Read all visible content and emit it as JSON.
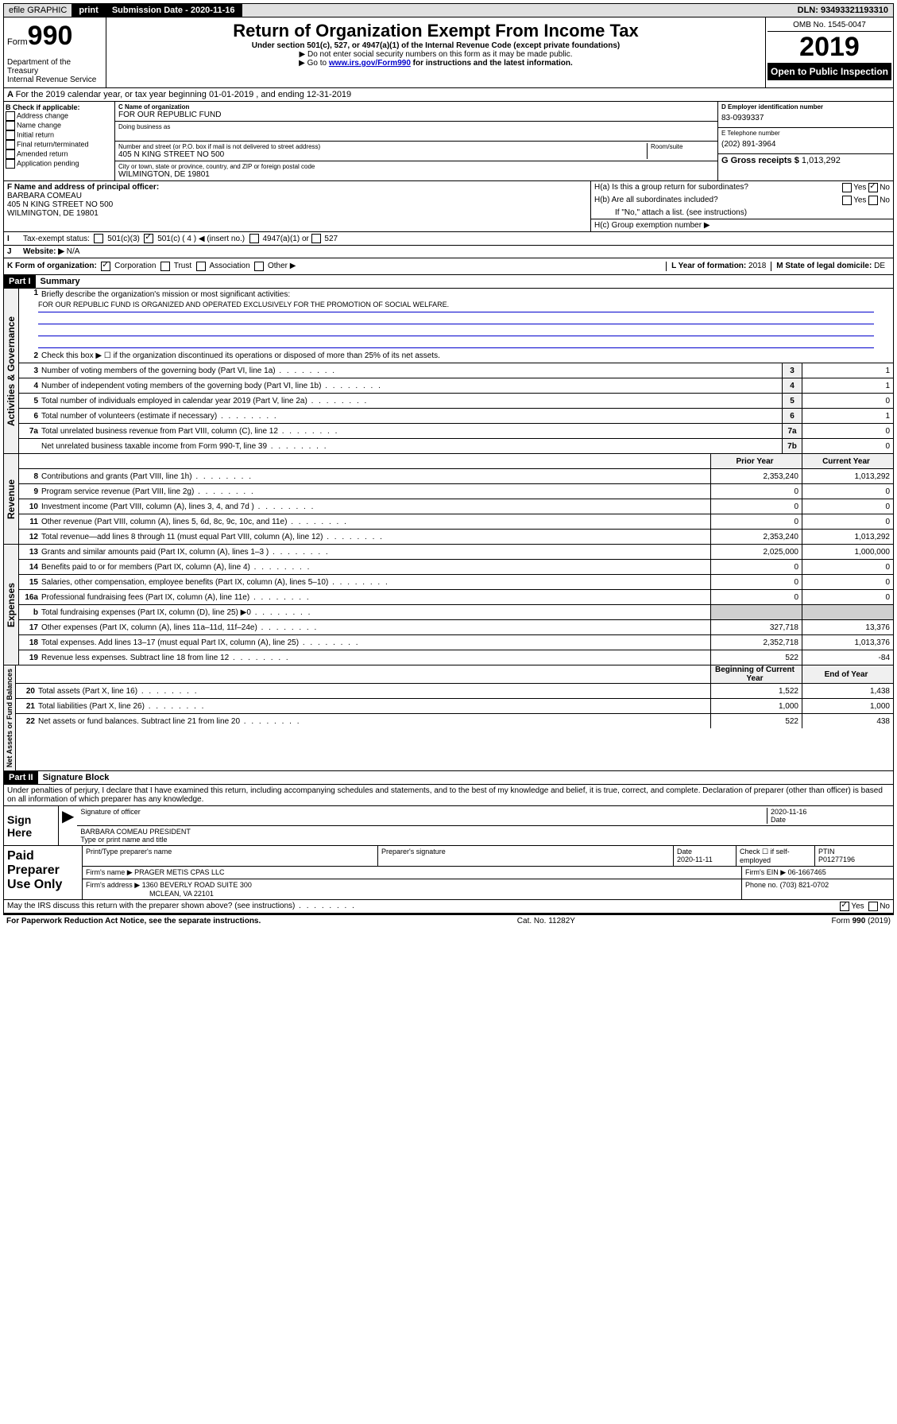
{
  "topbar": {
    "efile": "efile GRAPHIC",
    "print": "print",
    "subdate_label": "Submission Date - 2020-11-16",
    "dln": "DLN: 93493321193310"
  },
  "header": {
    "form_label": "Form",
    "form_num": "990",
    "title": "Return of Organization Exempt From Income Tax",
    "subtitle": "Under section 501(c), 527, or 4947(a)(1) of the Internal Revenue Code (except private foundations)",
    "note1": "▶ Do not enter social security numbers on this form as it may be made public.",
    "note2a": "▶ Go to ",
    "note2_link": "www.irs.gov/Form990",
    "note2b": " for instructions and the latest information.",
    "dept": "Department of the Treasury\nInternal Revenue Service",
    "omb": "OMB No. 1545-0047",
    "year": "2019",
    "open": "Open to Public Inspection"
  },
  "section_a": "For the 2019 calendar year, or tax year beginning 01-01-2019    , and ending 12-31-2019",
  "section_b": {
    "label": "Check if applicable:",
    "items": [
      "Address change",
      "Name change",
      "Initial return",
      "Final return/terminated",
      "Amended return",
      "Application pending"
    ]
  },
  "section_c": {
    "name_label": "C Name of organization",
    "name": "FOR OUR REPUBLIC FUND",
    "dba_label": "Doing business as",
    "addr_label": "Number and street (or P.O. box if mail is not delivered to street address)",
    "room_label": "Room/suite",
    "addr": "405 N KING STREET NO 500",
    "city_label": "City or town, state or province, country, and ZIP or foreign postal code",
    "city": "WILMINGTON, DE  19801"
  },
  "section_d": {
    "ein_label": "D Employer identification number",
    "ein": "83-0939337",
    "phone_label": "E Telephone number",
    "phone": "(202) 891-3964",
    "gross_label": "G Gross receipts $",
    "gross": "1,013,292"
  },
  "section_f": {
    "label": "F  Name and address of principal officer:",
    "name": "BARBARA COMEAU",
    "addr1": "405 N KING STREET NO 500",
    "addr2": "WILMINGTON, DE  19801"
  },
  "section_h": {
    "a_label": "H(a)  Is this a group return for subordinates?",
    "b_label": "H(b)  Are all subordinates included?",
    "b_note": "If \"No,\" attach a list. (see instructions)",
    "c_label": "H(c)  Group exemption number ▶",
    "yes": "Yes",
    "no": "No"
  },
  "section_i": {
    "label": "Tax-exempt status:",
    "opt1": "501(c)(3)",
    "opt2": "501(c) ( 4 ) ◀ (insert no.)",
    "opt3": "4947(a)(1) or",
    "opt4": "527"
  },
  "section_j": {
    "label": "Website: ▶",
    "value": "N/A"
  },
  "section_k": {
    "label": "K Form of organization:",
    "corp": "Corporation",
    "trust": "Trust",
    "assoc": "Association",
    "other": "Other ▶",
    "l_label": "L Year of formation:",
    "l_val": "2018",
    "m_label": "M State of legal domicile:",
    "m_val": "DE"
  },
  "part1": {
    "header": "Part I",
    "title": "Summary",
    "tabs": [
      "Activities & Governance",
      "Revenue",
      "Expenses",
      "Net Assets or Fund Balances"
    ],
    "line1_label": "Briefly describe the organization's mission or most significant activities:",
    "line1_text": "FOR OUR REPUBLIC FUND IS ORGANIZED AND OPERATED EXCLUSIVELY FOR THE PROMOTION OF SOCIAL WELFARE.",
    "line2": "Check this box ▶ ☐  if the organization discontinued its operations or disposed of more than 25% of its net assets.",
    "lines_gov": [
      {
        "n": "3",
        "t": "Number of voting members of the governing body (Part VI, line 1a)",
        "box": "3",
        "v": "1"
      },
      {
        "n": "4",
        "t": "Number of independent voting members of the governing body (Part VI, line 1b)",
        "box": "4",
        "v": "1"
      },
      {
        "n": "5",
        "t": "Total number of individuals employed in calendar year 2019 (Part V, line 2a)",
        "box": "5",
        "v": "0"
      },
      {
        "n": "6",
        "t": "Total number of volunteers (estimate if necessary)",
        "box": "6",
        "v": "1"
      },
      {
        "n": "7a",
        "t": "Total unrelated business revenue from Part VIII, column (C), line 12",
        "box": "7a",
        "v": "0"
      },
      {
        "n": "",
        "t": "Net unrelated business taxable income from Form 990-T, line 39",
        "box": "7b",
        "v": "0"
      }
    ],
    "col_prior": "Prior Year",
    "col_current": "Current Year",
    "col_boy": "Beginning of Current Year",
    "col_eoy": "End of Year",
    "lines_rev": [
      {
        "n": "8",
        "t": "Contributions and grants (Part VIII, line 1h)",
        "p": "2,353,240",
        "c": "1,013,292"
      },
      {
        "n": "9",
        "t": "Program service revenue (Part VIII, line 2g)",
        "p": "0",
        "c": "0"
      },
      {
        "n": "10",
        "t": "Investment income (Part VIII, column (A), lines 3, 4, and 7d )",
        "p": "0",
        "c": "0"
      },
      {
        "n": "11",
        "t": "Other revenue (Part VIII, column (A), lines 5, 6d, 8c, 9c, 10c, and 11e)",
        "p": "0",
        "c": "0"
      },
      {
        "n": "12",
        "t": "Total revenue—add lines 8 through 11 (must equal Part VIII, column (A), line 12)",
        "p": "2,353,240",
        "c": "1,013,292"
      }
    ],
    "lines_exp": [
      {
        "n": "13",
        "t": "Grants and similar amounts paid (Part IX, column (A), lines 1–3 )",
        "p": "2,025,000",
        "c": "1,000,000"
      },
      {
        "n": "14",
        "t": "Benefits paid to or for members (Part IX, column (A), line 4)",
        "p": "0",
        "c": "0"
      },
      {
        "n": "15",
        "t": "Salaries, other compensation, employee benefits (Part IX, column (A), lines 5–10)",
        "p": "0",
        "c": "0"
      },
      {
        "n": "16a",
        "t": "Professional fundraising fees (Part IX, column (A), line 11e)",
        "p": "0",
        "c": "0"
      },
      {
        "n": "b",
        "t": "Total fundraising expenses (Part IX, column (D), line 25) ▶0",
        "p": "",
        "c": "",
        "shaded": true
      },
      {
        "n": "17",
        "t": "Other expenses (Part IX, column (A), lines 11a–11d, 11f–24e)",
        "p": "327,718",
        "c": "13,376"
      },
      {
        "n": "18",
        "t": "Total expenses. Add lines 13–17 (must equal Part IX, column (A), line 25)",
        "p": "2,352,718",
        "c": "1,013,376"
      },
      {
        "n": "19",
        "t": "Revenue less expenses. Subtract line 18 from line 12",
        "p": "522",
        "c": "-84"
      }
    ],
    "lines_net": [
      {
        "n": "20",
        "t": "Total assets (Part X, line 16)",
        "p": "1,522",
        "c": "1,438"
      },
      {
        "n": "21",
        "t": "Total liabilities (Part X, line 26)",
        "p": "1,000",
        "c": "1,000"
      },
      {
        "n": "22",
        "t": "Net assets or fund balances. Subtract line 21 from line 20",
        "p": "522",
        "c": "438"
      }
    ]
  },
  "part2": {
    "header": "Part II",
    "title": "Signature Block",
    "perjury": "Under penalties of perjury, I declare that I have examined this return, including accompanying schedules and statements, and to the best of my knowledge and belief, it is true, correct, and complete. Declaration of preparer (other than officer) is based on all information of which preparer has any knowledge.",
    "sign_here": "Sign Here",
    "sig_officer": "Signature of officer",
    "sig_date": "2020-11-16",
    "date_label": "Date",
    "officer_name": "BARBARA COMEAU  PRESIDENT",
    "type_name": "Type or print name and title",
    "paid": "Paid Preparer Use Only",
    "prep_name_label": "Print/Type preparer's name",
    "prep_sig_label": "Preparer's signature",
    "prep_date_label": "Date",
    "prep_date": "2020-11-11",
    "check_self": "Check ☐ if self-employed",
    "ptin_label": "PTIN",
    "ptin": "P01277196",
    "firm_name_label": "Firm's name    ▶",
    "firm_name": "PRAGER METIS CPAS LLC",
    "firm_ein_label": "Firm's EIN ▶",
    "firm_ein": "06-1667465",
    "firm_addr_label": "Firm's address ▶",
    "firm_addr1": "1360 BEVERLY ROAD SUITE 300",
    "firm_addr2": "MCLEAN, VA  22101",
    "firm_phone_label": "Phone no.",
    "firm_phone": "(703) 821-0702",
    "discuss": "May the IRS discuss this return with the preparer shown above? (see instructions)",
    "yes": "Yes",
    "no": "No"
  },
  "footer": {
    "pra": "For Paperwork Reduction Act Notice, see the separate instructions.",
    "cat": "Cat. No. 11282Y",
    "form": "Form 990 (2019)"
  }
}
